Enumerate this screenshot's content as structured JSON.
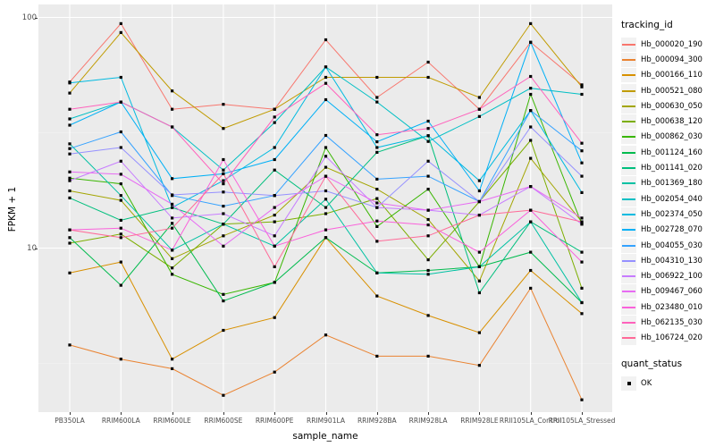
{
  "figure": {
    "y_axis_title": "FPKM + 1",
    "x_axis_title": "sample_name",
    "legend": {
      "tracking_title": "tracking_id",
      "quant_title": "quant_status",
      "quant_items": [
        {
          "label": "OK",
          "marker": "black-square"
        }
      ]
    }
  },
  "chart_data": {
    "type": "line",
    "title": "",
    "xlabel": "sample_name",
    "ylabel": "FPKM + 1",
    "y_scale": "log10",
    "y_major_ticks": [
      10,
      100
    ],
    "y_minor_gridlines": [
      3.162,
      31.62
    ],
    "ylim": [
      1.95,
      113
    ],
    "grid": "white-on-grey-panel",
    "legend_position": "right",
    "point_marker": {
      "shape": "square",
      "color": "#000000",
      "meaning": "quant_status OK"
    },
    "categories": [
      "PB350LA",
      "RRIM600LA",
      "RRIM600LE",
      "RRIM600SE",
      "RRIM600PE",
      "RRIM901LA",
      "RRIM928BA",
      "RRIM928LA",
      "RRIM928LE",
      "RRII105LA_Control",
      "RRII105LA_Stressed"
    ],
    "series": [
      {
        "name": "Hb_000020_190",
        "color": "#F8766D",
        "values": [
          52.5,
          94,
          40,
          42,
          40,
          80,
          45,
          64,
          40,
          78,
          51
        ]
      },
      {
        "name": "Hb_000094_300",
        "color": "#EA8331",
        "values": [
          3.8,
          3.3,
          3.0,
          2.3,
          2.9,
          4.2,
          3.4,
          3.4,
          3.1,
          6.7,
          2.2
        ]
      },
      {
        "name": "Hb_000166_110",
        "color": "#D89000",
        "values": [
          7.8,
          8.7,
          3.3,
          4.4,
          5.0,
          11.1,
          6.2,
          5.1,
          4.3,
          8.0,
          5.2
        ]
      },
      {
        "name": "Hb_000521_080",
        "color": "#C09B00",
        "values": [
          47,
          86,
          48,
          33,
          40,
          55,
          55,
          55,
          45,
          94,
          50
        ]
      },
      {
        "name": "Hb_000630_050",
        "color": "#A3A500",
        "values": [
          17.7,
          16.1,
          9.0,
          11.3,
          13.9,
          22.4,
          18,
          13.3,
          7.2,
          24.5,
          13
        ]
      },
      {
        "name": "Hb_000638_120",
        "color": "#7CAE00",
        "values": [
          10.5,
          11.5,
          8.2,
          12.7,
          13,
          14.1,
          16.4,
          8.9,
          15.9,
          29.3,
          6.7
        ]
      },
      {
        "name": "Hb_000862_030",
        "color": "#39B600",
        "values": [
          20.1,
          19,
          7.7,
          6.3,
          7.1,
          27.3,
          12.4,
          18,
          8.3,
          46.4,
          12.7
        ]
      },
      {
        "name": "Hb_001124_160",
        "color": "#00BB4E",
        "values": [
          11.1,
          6.9,
          12.8,
          5.9,
          7.1,
          11.1,
          7.8,
          8.0,
          8.3,
          9.6,
          5.8
        ]
      },
      {
        "name": "Hb_001141_020",
        "color": "#00BF7D",
        "values": [
          16.5,
          13.2,
          15,
          12.7,
          21.8,
          15,
          26,
          30.7,
          6.4,
          13,
          9.6
        ]
      },
      {
        "name": "Hb_001369_180",
        "color": "#00C1A3",
        "values": [
          28.3,
          16.9,
          9.8,
          12.7,
          10.2,
          16.3,
          7.8,
          7.7,
          8.3,
          13,
          5.8
        ]
      },
      {
        "name": "Hb_002054_040",
        "color": "#00BFC4",
        "values": [
          36.3,
          43,
          33.5,
          21.8,
          35,
          61,
          43,
          29,
          37.2,
          49.3,
          46.4
        ]
      },
      {
        "name": "Hb_002374_050",
        "color": "#00BAE0",
        "values": [
          52,
          55,
          15,
          19.6,
          27.3,
          61,
          27.3,
          30.7,
          19.6,
          39.5,
          17.4
        ]
      },
      {
        "name": "Hb_002728_070",
        "color": "#00B0F6",
        "values": [
          34.1,
          43,
          20,
          21,
          24.2,
          44,
          28.9,
          35.5,
          17.7,
          78,
          23.4
        ]
      },
      {
        "name": "Hb_004055_030",
        "color": "#35A2FF",
        "values": [
          27,
          31.9,
          16.9,
          15.2,
          16.9,
          30.8,
          19.9,
          20.5,
          15.9,
          39.5,
          26.4
        ]
      },
      {
        "name": "Hb_004310_130",
        "color": "#9590FF",
        "values": [
          25.6,
          27.3,
          17,
          17.5,
          16.9,
          17.7,
          15,
          23.8,
          15.9,
          33.5,
          20.5
        ]
      },
      {
        "name": "Hb_006922_100",
        "color": "#C77CFF",
        "values": [
          19.6,
          23.8,
          13.5,
          14.1,
          11.3,
          25,
          15,
          14.6,
          13.9,
          18.5,
          12.7
        ]
      },
      {
        "name": "Hb_009467_060",
        "color": "#E76BF3",
        "values": [
          21.4,
          20.9,
          15.5,
          10.2,
          15,
          20.5,
          15.7,
          14.6,
          15.9,
          18.5,
          13.5
        ]
      },
      {
        "name": "Hb_023480_010",
        "color": "#FA62DB",
        "values": [
          12,
          12.2,
          9.8,
          24.2,
          10.2,
          12,
          13.1,
          12.6,
          9.6,
          14.6,
          8.7
        ]
      },
      {
        "name": "Hb_062135_030",
        "color": "#FF62BC",
        "values": [
          40,
          43,
          33.5,
          19,
          37,
          51.8,
          31,
          33,
          40,
          55.5,
          28.5
        ]
      },
      {
        "name": "Hb_106724_020",
        "color": "#FF6A98",
        "values": [
          12,
          11.1,
          12.2,
          21,
          8.3,
          20.5,
          10.7,
          11.3,
          13.9,
          14.6,
          13
        ]
      }
    ]
  }
}
